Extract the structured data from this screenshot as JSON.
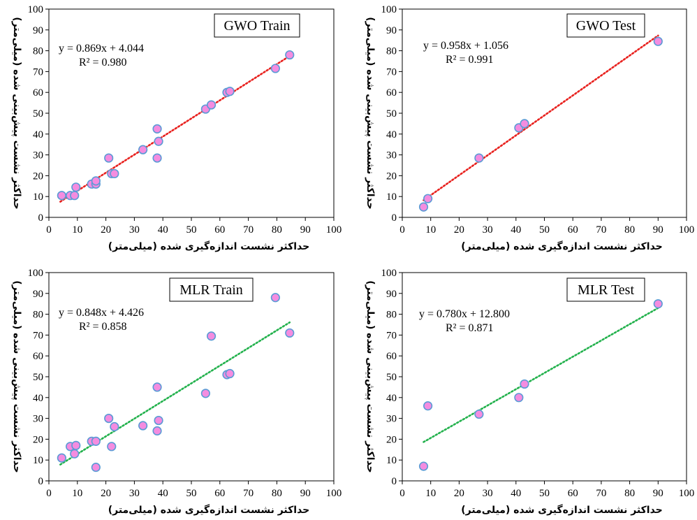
{
  "chart_data": [
    {
      "type": "scatter",
      "title": "GWO Train",
      "xlabel": "حداکثر نشست اندازه‌گیری شده (میلی‌متر)",
      "ylabel": "حداکثر نشست پیش‌بینی شده (میلی‌متر)",
      "xlim": [
        0,
        100
      ],
      "ylim": [
        0,
        100
      ],
      "xticks": [
        "0",
        "10",
        "20",
        "30",
        "40",
        "50",
        "60",
        "70",
        "80",
        "90",
        "100"
      ],
      "yticks": [
        "0",
        "10",
        "20",
        "30",
        "40",
        "50",
        "60",
        "70",
        "80",
        "90",
        "100"
      ],
      "equation": "y = 0.869x + 4.044",
      "r2": "R² = 0.980",
      "trend": {
        "slope": 0.869,
        "intercept": 4.044,
        "x_range": [
          4,
          84.5
        ],
        "color": "#e8211e"
      },
      "marker_color": "#f48ce0",
      "marker_edge": "#5b9bd5",
      "points": [
        [
          4.5,
          10.5
        ],
        [
          7.5,
          10.5
        ],
        [
          9,
          10.5
        ],
        [
          9.5,
          14.5
        ],
        [
          15,
          16
        ],
        [
          16.5,
          16
        ],
        [
          16.5,
          17.5
        ],
        [
          21,
          28.5
        ],
        [
          22,
          21
        ],
        [
          23,
          21
        ],
        [
          33,
          32.5
        ],
        [
          38,
          42.5
        ],
        [
          38,
          28.5
        ],
        [
          38.5,
          36.5
        ],
        [
          55,
          52
        ],
        [
          57,
          54
        ],
        [
          62.5,
          60
        ],
        [
          63.5,
          60.5
        ],
        [
          79.5,
          71.5
        ],
        [
          84.5,
          78
        ]
      ]
    },
    {
      "type": "scatter",
      "title": "GWO Test",
      "xlabel": "حداکثر نشست اندازه‌گیری شده (میلی‌متر)",
      "ylabel": "حداکثر نشست پیش‌بینی شده (میلی‌متر)",
      "xlim": [
        0,
        100
      ],
      "ylim": [
        0,
        100
      ],
      "xticks": [
        "0",
        "10",
        "20",
        "30",
        "40",
        "50",
        "60",
        "70",
        "80",
        "90",
        "100"
      ],
      "yticks": [
        "0",
        "10",
        "20",
        "30",
        "40",
        "50",
        "60",
        "70",
        "80",
        "90",
        "100"
      ],
      "equation": "y = 0.958x + 1.056",
      "r2": "R² = 0.991",
      "trend": {
        "slope": 0.958,
        "intercept": 1.056,
        "x_range": [
          7.5,
          90
        ],
        "color": "#e8211e"
      },
      "marker_color": "#f48ce0",
      "marker_edge": "#5b9bd5",
      "points": [
        [
          7.5,
          5
        ],
        [
          9,
          9
        ],
        [
          27,
          28.5
        ],
        [
          41,
          43
        ],
        [
          43,
          45
        ],
        [
          90,
          84.5
        ]
      ]
    },
    {
      "type": "scatter",
      "title": "MLR Train",
      "xlabel": "حداکثر نشست اندازه‌گیری شده (میلی‌متر)",
      "ylabel": "حداکثر نشست پیش‌بینی شده (میلی‌متر)",
      "xlim": [
        0,
        100
      ],
      "ylim": [
        0,
        100
      ],
      "xticks": [
        "0",
        "10",
        "20",
        "30",
        "40",
        "50",
        "60",
        "70",
        "80",
        "90",
        "100"
      ],
      "yticks": [
        "0",
        "10",
        "20",
        "30",
        "40",
        "50",
        "60",
        "70",
        "80",
        "90",
        "100"
      ],
      "equation": "y = 0.848x + 4.426",
      "r2": "R² = 0.858",
      "trend": {
        "slope": 0.848,
        "intercept": 4.426,
        "x_range": [
          4,
          84.5
        ],
        "color": "#22b14c"
      },
      "marker_color": "#f48ce0",
      "marker_edge": "#5b9bd5",
      "points": [
        [
          4.5,
          11
        ],
        [
          7.5,
          16.5
        ],
        [
          9,
          13
        ],
        [
          9.5,
          17
        ],
        [
          15,
          19
        ],
        [
          16.5,
          6.5
        ],
        [
          16.5,
          19
        ],
        [
          21,
          30
        ],
        [
          22,
          16.5
        ],
        [
          23,
          26
        ],
        [
          33,
          26.5
        ],
        [
          38,
          45
        ],
        [
          38,
          24
        ],
        [
          38.5,
          29
        ],
        [
          55,
          42
        ],
        [
          57,
          69.5
        ],
        [
          62.5,
          51
        ],
        [
          63.5,
          51.5
        ],
        [
          79.5,
          88
        ],
        [
          84.5,
          71
        ]
      ]
    },
    {
      "type": "scatter",
      "title": "MLR Test",
      "xlabel": "حداکثر نشست اندازه‌گیری شده (میلی‌متر)",
      "ylabel": "حداکثر نشست پیش‌بینی شده (میلی‌متر)",
      "xlim": [
        0,
        100
      ],
      "ylim": [
        0,
        100
      ],
      "xticks": [
        "0",
        "10",
        "20",
        "30",
        "40",
        "50",
        "60",
        "70",
        "80",
        "90",
        "100"
      ],
      "yticks": [
        "0",
        "10",
        "20",
        "30",
        "40",
        "50",
        "60",
        "70",
        "80",
        "90",
        "100"
      ],
      "equation": "y = 0.780x + 12.800",
      "r2": "R² = 0.871",
      "trend": {
        "slope": 0.78,
        "intercept": 12.8,
        "x_range": [
          7.5,
          90
        ],
        "color": "#22b14c"
      },
      "marker_color": "#f48ce0",
      "marker_edge": "#5b9bd5",
      "points": [
        [
          7.5,
          7
        ],
        [
          9,
          36
        ],
        [
          27,
          32
        ],
        [
          41,
          40
        ],
        [
          43,
          46.5
        ],
        [
          90,
          85
        ]
      ]
    }
  ]
}
